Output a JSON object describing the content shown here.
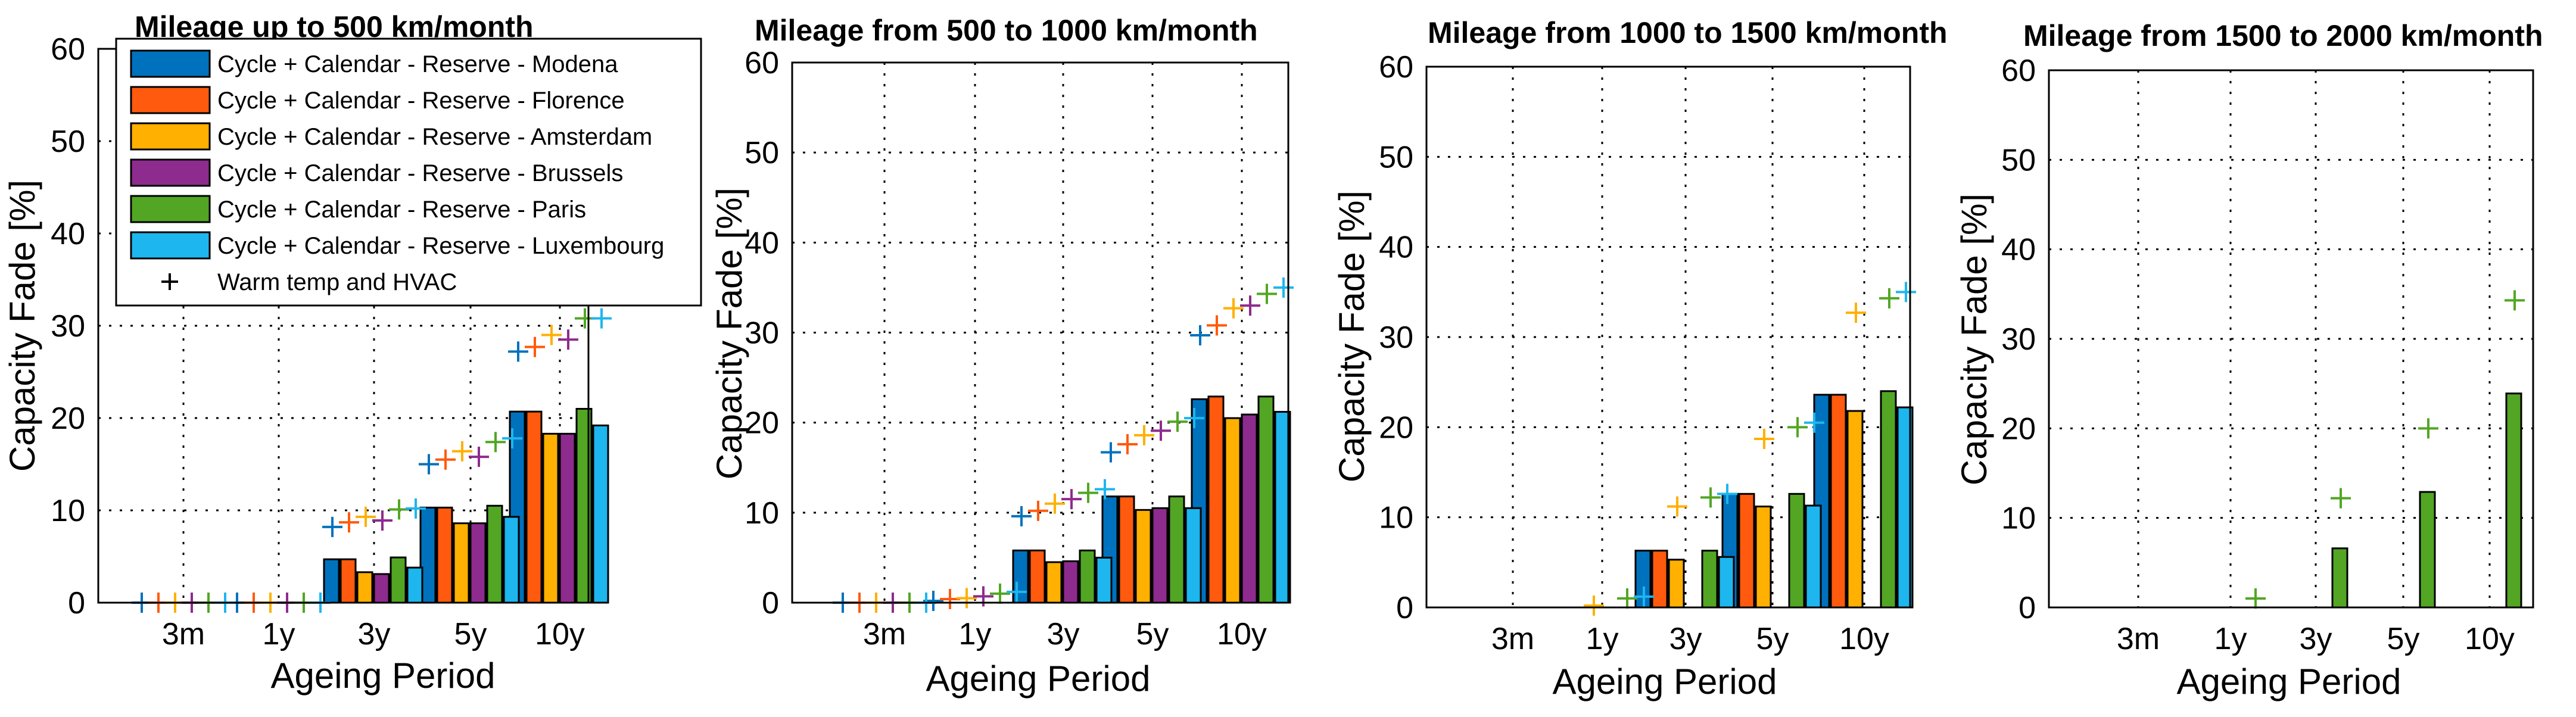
{
  "chart_data": [
    {
      "type": "bar",
      "title": "Mileage up to 500 km/month",
      "xlabel": "Ageing Period",
      "ylabel": "Capacity Fade [%]",
      "categories": [
        "3m",
        "1y",
        "3y",
        "5y",
        "10y"
      ],
      "ylim": [
        0,
        60
      ],
      "yticks": [
        0,
        10,
        20,
        30,
        40,
        50,
        60
      ],
      "grid": true,
      "legend_placement": "top",
      "series": [
        {
          "name": "Cycle + Calendar - Reserve - Modena",
          "color": "#0072BD",
          "values": [
            0,
            0,
            4.7,
            10.3,
            20.7
          ],
          "hvac": [
            0,
            0,
            8.2,
            15.0,
            27.2
          ]
        },
        {
          "name": "Cycle + Calendar - Reserve - Florence",
          "color": "#FF5A0D",
          "values": [
            0,
            0,
            4.7,
            10.3,
            20.7
          ],
          "hvac": [
            0,
            0,
            8.7,
            15.5,
            27.7
          ]
        },
        {
          "name": "Cycle + Calendar - Reserve - Amsterdam",
          "color": "#FFB000",
          "values": [
            0,
            0,
            3.3,
            8.6,
            18.3
          ],
          "hvac": [
            0,
            0,
            9.3,
            16.4,
            29.0
          ]
        },
        {
          "name": "Cycle + Calendar - Reserve - Brussels",
          "color": "#8E2B8E",
          "values": [
            0,
            0,
            3.1,
            8.6,
            18.3
          ],
          "hvac": [
            0,
            0,
            8.9,
            15.8,
            28.5
          ]
        },
        {
          "name": "Cycle + Calendar - Reserve - Paris",
          "color": "#52A623",
          "values": [
            0,
            0,
            4.9,
            10.5,
            21.0
          ],
          "hvac": [
            0,
            0,
            10.1,
            17.4,
            30.8
          ]
        },
        {
          "name": "Cycle + Calendar - Reserve - Luxembourg",
          "color": "#1DB6EE",
          "values": [
            0,
            0,
            3.8,
            9.3,
            19.2
          ],
          "hvac": [
            0,
            0,
            10.2,
            17.8,
            30.8
          ]
        }
      ],
      "marker_legend": "Warm temp and HVAC"
    },
    {
      "type": "bar",
      "title": "Mileage from 500 to 1000 km/month",
      "xlabel": "Ageing Period",
      "ylabel": "Capacity Fade [%]",
      "categories": [
        "3m",
        "1y",
        "3y",
        "5y",
        "10y"
      ],
      "ylim": [
        0,
        60
      ],
      "yticks": [
        0,
        10,
        20,
        30,
        40,
        50,
        60
      ],
      "grid": true,
      "series": [
        {
          "name": "Modena",
          "color": "#0072BD",
          "values": [
            0,
            0,
            5.8,
            11.8,
            22.6
          ],
          "hvac": [
            0,
            0.2,
            9.6,
            16.7,
            29.7
          ]
        },
        {
          "name": "Florence",
          "color": "#FF5A0D",
          "values": [
            0,
            0,
            5.8,
            11.8,
            22.9
          ],
          "hvac": [
            0,
            0.4,
            10.2,
            17.6,
            30.8
          ]
        },
        {
          "name": "Amsterdam",
          "color": "#FFB000",
          "values": [
            0,
            0,
            4.5,
            10.3,
            20.5
          ],
          "hvac": [
            0,
            0.5,
            11.0,
            18.6,
            32.7
          ]
        },
        {
          "name": "Brussels",
          "color": "#8E2B8E",
          "values": [
            0,
            0,
            4.6,
            10.5,
            20.9
          ],
          "hvac": [
            0,
            0.7,
            11.5,
            19.1,
            33.0
          ]
        },
        {
          "name": "Paris",
          "color": "#52A623",
          "values": [
            0,
            0,
            5.8,
            11.8,
            22.9
          ],
          "hvac": [
            0,
            1.0,
            12.2,
            20.1,
            34.3
          ]
        },
        {
          "name": "Luxembourg",
          "color": "#1DB6EE",
          "values": [
            0,
            0,
            5.0,
            10.5,
            21.2
          ],
          "hvac": [
            0,
            1.2,
            12.6,
            20.5,
            35.0
          ]
        }
      ]
    },
    {
      "type": "bar",
      "title": "Mileage from 1000 to 1500 km/month",
      "xlabel": "Ageing Period",
      "ylabel": "Capacity Fade [%]",
      "categories": [
        "3m",
        "1y",
        "3y",
        "5y",
        "10y"
      ],
      "ylim": [
        0,
        60
      ],
      "yticks": [
        0,
        10,
        20,
        30,
        40,
        50,
        60
      ],
      "grid": true,
      "series": [
        {
          "name": "Modena",
          "color": "#0072BD",
          "values": [
            0,
            0,
            6.3,
            12.6,
            23.6
          ],
          "hvac": [
            null,
            null,
            null,
            null,
            null
          ]
        },
        {
          "name": "Florence",
          "color": "#FF5A0D",
          "values": [
            0,
            0,
            6.3,
            12.6,
            23.6
          ],
          "hvac": [
            null,
            null,
            null,
            null,
            null
          ]
        },
        {
          "name": "Amsterdam",
          "color": "#FFB000",
          "values": [
            0,
            0,
            5.3,
            11.2,
            21.8
          ],
          "hvac": [
            null,
            0.2,
            11.2,
            18.7,
            32.7
          ]
        },
        {
          "name": "Brussels",
          "color": "#8E2B8E",
          "values": [
            0,
            0,
            0,
            0,
            0
          ],
          "hvac": [
            null,
            null,
            null,
            null,
            null
          ]
        },
        {
          "name": "Paris",
          "color": "#52A623",
          "values": [
            0,
            0,
            6.3,
            12.6,
            24.0
          ],
          "hvac": [
            null,
            1.0,
            12.2,
            20.0,
            34.3
          ]
        },
        {
          "name": "Luxembourg",
          "color": "#1DB6EE",
          "values": [
            0,
            0,
            5.6,
            11.3,
            22.2
          ],
          "hvac": [
            null,
            1.2,
            12.6,
            20.5,
            35.0
          ]
        }
      ]
    },
    {
      "type": "bar",
      "title": "Mileage from 1500 to 2000 km/month",
      "xlabel": "Ageing Period",
      "ylabel": "Capacity Fade [%]",
      "categories": [
        "3m",
        "1y",
        "3y",
        "5y",
        "10y"
      ],
      "ylim": [
        0,
        60
      ],
      "yticks": [
        0,
        10,
        20,
        30,
        40,
        50,
        60
      ],
      "grid": true,
      "series": [
        {
          "name": "Modena",
          "color": "#0072BD",
          "values": [
            0,
            0,
            0,
            0,
            0
          ],
          "hvac": [
            null,
            null,
            null,
            null,
            null
          ]
        },
        {
          "name": "Florence",
          "color": "#FF5A0D",
          "values": [
            0,
            0,
            0,
            0,
            0
          ],
          "hvac": [
            null,
            null,
            null,
            null,
            null
          ]
        },
        {
          "name": "Amsterdam",
          "color": "#FFB000",
          "values": [
            0,
            0,
            0,
            0,
            0
          ],
          "hvac": [
            null,
            null,
            null,
            null,
            null
          ]
        },
        {
          "name": "Brussels",
          "color": "#8E2B8E",
          "values": [
            0,
            0,
            0,
            0,
            0
          ],
          "hvac": [
            null,
            null,
            null,
            null,
            null
          ]
        },
        {
          "name": "Paris",
          "color": "#52A623",
          "values": [
            0,
            0,
            6.6,
            12.9,
            23.9
          ],
          "hvac": [
            null,
            1.0,
            12.2,
            20.0,
            34.3
          ]
        },
        {
          "name": "Luxembourg",
          "color": "#1DB6EE",
          "values": [
            0,
            0,
            0,
            0,
            0
          ],
          "hvac": [
            null,
            null,
            null,
            null,
            null
          ]
        }
      ]
    }
  ]
}
